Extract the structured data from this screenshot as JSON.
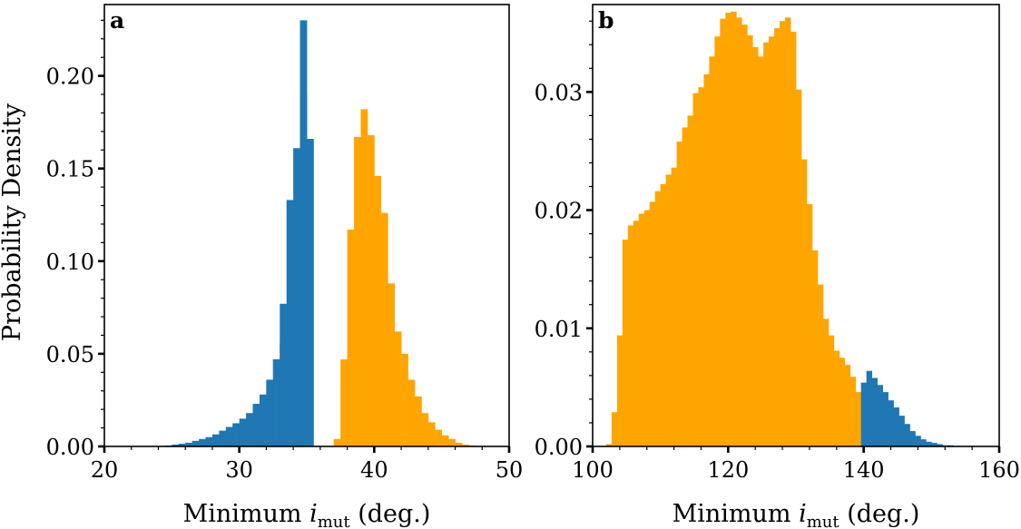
{
  "figure": {
    "ylabel": "Probability Density"
  },
  "colors": {
    "blue": "#1f77b4",
    "orange": "#ffa500"
  },
  "chart_data": [
    {
      "type": "bar",
      "panel_label": "a",
      "xlabel": "Minimum i_mut (deg.)",
      "xlabel_main": "Minimum",
      "xlabel_var": "i",
      "xlabel_sub": "mut",
      "xlabel_unit": "(deg.)",
      "ylabel": "Probability Density",
      "xlim": [
        20,
        50
      ],
      "ylim": [
        0,
        0.2385
      ],
      "xticks": [
        20,
        30,
        40,
        50
      ],
      "xtick_labels": [
        "20",
        "30",
        "40",
        "50"
      ],
      "yticks": [
        0,
        0.05,
        0.1,
        0.15,
        0.2
      ],
      "ytick_labels": [
        "0.00",
        "0.05",
        "0.10",
        "0.15",
        "0.20"
      ],
      "bin_width": 0.5,
      "series": [
        {
          "color": "blue",
          "x": [
            24.5,
            25.0,
            25.5,
            26.0,
            26.5,
            27.0,
            27.5,
            28.0,
            28.5,
            29.0,
            29.5,
            30.0,
            30.5,
            31.0,
            31.5,
            32.0,
            32.5,
            33.0,
            33.5,
            34.0,
            34.5,
            35.0
          ],
          "values": [
            0.0005,
            0.001,
            0.0015,
            0.002,
            0.003,
            0.004,
            0.005,
            0.0065,
            0.0085,
            0.0105,
            0.0125,
            0.015,
            0.018,
            0.023,
            0.028,
            0.036,
            0.047,
            0.056,
            0.077,
            0.124,
            0.19,
            0.0
          ]
        },
        {
          "color": "blue",
          "x": [
            32.0,
            32.5,
            33.0,
            33.5,
            34.0,
            34.5,
            35.0
          ],
          "values": [
            0.036,
            0.047,
            0.077,
            0.133,
            0.161,
            0.23,
            0.166
          ]
        },
        {
          "color": "orange",
          "x": [
            37.0,
            37.5,
            38.0,
            38.5,
            39.0,
            39.5,
            40.0,
            40.5,
            41.0,
            41.5,
            42.0,
            42.5,
            43.0,
            43.5,
            44.0,
            44.5,
            45.0,
            45.5,
            46.0,
            46.5,
            47.0
          ],
          "values": [
            0.004,
            0.047,
            0.117,
            0.167,
            0.182,
            0.168,
            0.146,
            0.126,
            0.088,
            0.062,
            0.05,
            0.036,
            0.027,
            0.018,
            0.013,
            0.009,
            0.006,
            0.004,
            0.002,
            0.001,
            0.0005
          ]
        }
      ]
    },
    {
      "type": "bar",
      "panel_label": "b",
      "xlabel": "Minimum i_mut (deg.)",
      "xlabel_main": "Minimum",
      "xlabel_var": "i",
      "xlabel_sub": "mut",
      "xlabel_unit": "(deg.)",
      "xlim": [
        100,
        160
      ],
      "ylim": [
        0,
        0.0374
      ],
      "xticks": [
        100,
        120,
        140,
        160
      ],
      "xtick_labels": [
        "100",
        "120",
        "140",
        "160"
      ],
      "yticks": [
        0,
        0.01,
        0.02,
        0.03
      ],
      "ytick_labels": [
        "0.00",
        "0.01",
        "0.02",
        "0.03"
      ],
      "bin_width": 0.8,
      "series": [
        {
          "color": "orange",
          "x": [
            102.0,
            102.8,
            103.6,
            104.4,
            105.2,
            106.0,
            106.8,
            107.6,
            108.4,
            109.2,
            110.0,
            110.8,
            111.6,
            112.4,
            113.2,
            114.0,
            114.8,
            115.6,
            116.4,
            117.2,
            118.0,
            118.8,
            119.6,
            120.4,
            121.2,
            122.0,
            122.8,
            123.6,
            124.4,
            125.2,
            126.0,
            126.8,
            127.6,
            128.4,
            129.2,
            130.0,
            130.8,
            131.6,
            132.4,
            133.2,
            134.0,
            134.8,
            135.6,
            136.4,
            137.2,
            138.0,
            138.8,
            139.6
          ],
          "values": [
            0.0002,
            0.0029,
            0.0094,
            0.0175,
            0.0187,
            0.0191,
            0.0197,
            0.02,
            0.0207,
            0.0216,
            0.0222,
            0.023,
            0.0236,
            0.0258,
            0.027,
            0.028,
            0.0299,
            0.0304,
            0.0315,
            0.033,
            0.0347,
            0.0362,
            0.0367,
            0.0368,
            0.0363,
            0.0357,
            0.0348,
            0.0338,
            0.033,
            0.0342,
            0.0347,
            0.0354,
            0.036,
            0.0363,
            0.0351,
            0.0302,
            0.0243,
            0.0205,
            0.0166,
            0.0137,
            0.0108,
            0.0094,
            0.0081,
            0.0075,
            0.0069,
            0.0059,
            0.0046,
            0.001
          ]
        },
        {
          "color": "blue",
          "x": [
            139.6,
            140.4,
            141.2,
            142.0,
            142.8,
            143.6,
            144.4,
            145.2,
            146.0,
            146.8,
            147.6,
            148.4,
            149.2,
            150.0,
            150.8,
            151.6,
            152.4
          ],
          "values": [
            0.0054,
            0.0064,
            0.0058,
            0.0052,
            0.0046,
            0.0039,
            0.0033,
            0.0026,
            0.0019,
            0.0013,
            0.0009,
            0.0006,
            0.0004,
            0.0003,
            0.0002,
            0.0001,
            0.0001
          ]
        }
      ]
    }
  ]
}
